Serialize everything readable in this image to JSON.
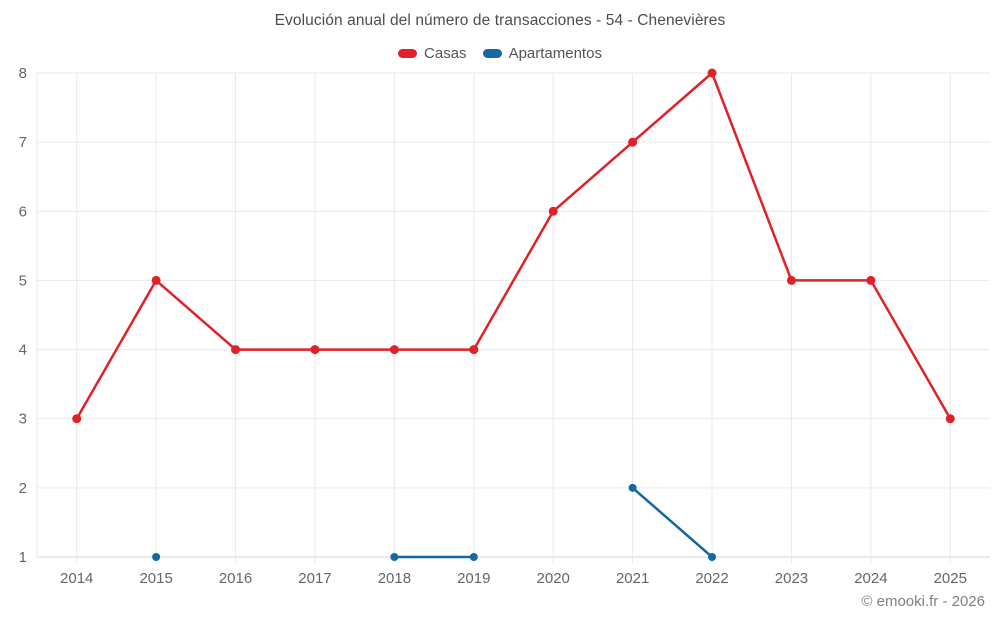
{
  "header": {
    "title": "Evolución anual del número de transacciones - 54 - Chenevières"
  },
  "footer": {
    "watermark": "© emooki.fr - 2026"
  },
  "style": {
    "grid_color": "#e9e9e9",
    "axis_line_color": "#d6d6d6",
    "axis_label_color": "#666666",
    "title_color": "#4d4d4d",
    "legend_text_color": "#555555",
    "casas_color": "#e02228",
    "apartamentos_color": "#1569a0"
  },
  "chart_data": {
    "type": "line",
    "title": "Evolución anual del número de transacciones - 54 - Chenevières",
    "categories": [
      "2014",
      "2015",
      "2016",
      "2017",
      "2018",
      "2019",
      "2020",
      "2021",
      "2022",
      "2023",
      "2024",
      "2025"
    ],
    "series": [
      {
        "name": "Casas",
        "color": "#e02228",
        "values": [
          3,
          5,
          4,
          4,
          4,
          4,
          6,
          7,
          8,
          5,
          5,
          3
        ]
      },
      {
        "name": "Apartamentos",
        "color": "#1569a0",
        "values": [
          null,
          1,
          null,
          null,
          1,
          1,
          null,
          2,
          1,
          null,
          null,
          null
        ]
      }
    ],
    "xlabel": "",
    "ylabel": "",
    "ylim": [
      1,
      8
    ],
    "yticks": [
      1,
      2,
      3,
      4,
      5,
      6,
      7,
      8
    ],
    "grid": true,
    "legend_position": "top",
    "annotations": [
      "© emooki.fr - 2026"
    ]
  }
}
